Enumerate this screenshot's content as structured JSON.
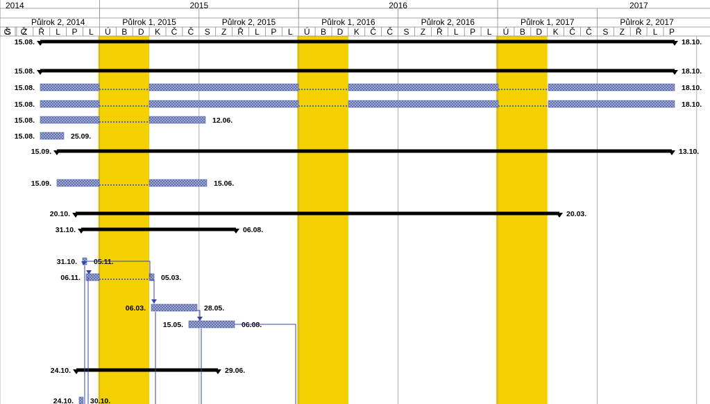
{
  "header": {
    "years": [
      "2014",
      "2015",
      "2016",
      "2017"
    ],
    "halves": [
      "Půlrok 2, 2014",
      "Půlrok 1, 2015",
      "Půlrok 2, 2015",
      "Půlrok 1, 2016",
      "Půlrok 2, 2016",
      "Půlrok 1, 2017",
      "Půlrok 2, 2017"
    ],
    "month_letters": [
      "Č",
      "Č",
      "S",
      "Z",
      "Ř",
      "L",
      "P",
      "L",
      "Ú",
      "B",
      "D",
      "K",
      "Č",
      "Č",
      "S",
      "Z",
      "Ř",
      "L",
      "P",
      "L",
      "Ú",
      "B",
      "D",
      "K",
      "Č",
      "Č",
      "S",
      "Z",
      "Ř",
      "L",
      "P",
      "L",
      "Ú",
      "B",
      "D",
      "K",
      "Č",
      "Č",
      "S",
      "Z",
      "Ř",
      "L",
      "P"
    ]
  },
  "colors": {
    "highlight": "#F5D000",
    "task_bar": "#5566AA",
    "summary_bar": "#000000",
    "link": "#3344AA",
    "gridline": "#999999"
  },
  "highlight_periods": [
    {
      "start": "2015-01",
      "end": "2015-03"
    },
    {
      "start": "2016-01",
      "end": "2016-03"
    },
    {
      "start": "2017-01",
      "end": "2017-03"
    }
  ],
  "tasks": [
    {
      "type": "summary",
      "start": "15.08.",
      "end": "18.10."
    },
    {
      "type": "summary",
      "start": "15.08.",
      "end": "18.10."
    },
    {
      "type": "split",
      "start": "15.08.",
      "end": "18.10."
    },
    {
      "type": "split",
      "start": "15.08.",
      "end": "18.10."
    },
    {
      "type": "split",
      "start": "15.08.",
      "end": "12.06."
    },
    {
      "type": "task",
      "start": "15.08.",
      "end": "25.09."
    },
    {
      "type": "summary",
      "start": "15.09.",
      "end": "13.10."
    },
    {
      "type": "split",
      "start": "15.09.",
      "end": "15.06."
    },
    {
      "type": "summary",
      "start": "20.10.",
      "end": "20.03."
    },
    {
      "type": "summary",
      "start": "31.10.",
      "end": "06.08."
    },
    {
      "type": "task",
      "start": "31.10.",
      "end": "05.11."
    },
    {
      "type": "split",
      "start": "06.11.",
      "end": "05.03."
    },
    {
      "type": "task",
      "start": "06.03.",
      "end": "28.05."
    },
    {
      "type": "task",
      "start": "15.05.",
      "end": "06.08."
    },
    {
      "type": "summary",
      "start": "24.10.",
      "end": "29.06."
    },
    {
      "type": "task",
      "start": "24.10.",
      "end": "30.10."
    }
  ]
}
